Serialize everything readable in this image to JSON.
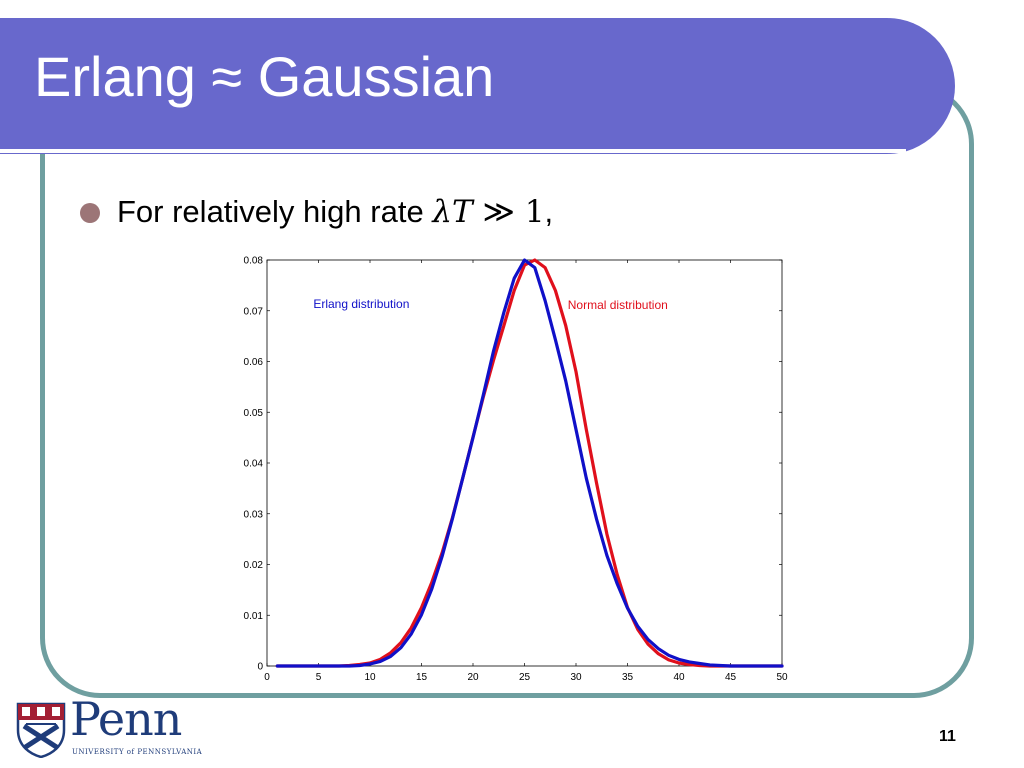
{
  "slide": {
    "title": "Erlang ≈ Gaussian",
    "bullet_prefix": "For relatively high rate ",
    "bullet_math_lambda_t": "λT",
    "bullet_math_gg": " ≫ ",
    "bullet_math_one": "1",
    "bullet_suffix": ",",
    "page_number": "11"
  },
  "logo": {
    "name": "Penn",
    "subtitle": "UNIVERSITY of PENNSYLVANIA"
  },
  "colors": {
    "title_bar": "#6868cc",
    "frame": "#6f9fa0",
    "bullet": "#9c7577",
    "erlang": "#1010c8",
    "normal": "#e0101c"
  },
  "chart_data": {
    "type": "line",
    "xlim": [
      0,
      50
    ],
    "ylim": [
      0,
      0.08
    ],
    "xticks": [
      0,
      5,
      10,
      15,
      20,
      25,
      30,
      35,
      40,
      45,
      50
    ],
    "yticks": [
      0,
      0.01,
      0.02,
      0.03,
      0.04,
      0.05,
      0.06,
      0.07,
      0.08
    ],
    "xtick_labels": [
      "0",
      "5",
      "10",
      "15",
      "20",
      "25",
      "30",
      "35",
      "40",
      "45",
      "50"
    ],
    "ytick_labels": [
      "0",
      "0.01",
      "0.02",
      "0.03",
      "0.04",
      "0.05",
      "0.06",
      "0.07",
      "0.08"
    ],
    "x": [
      1,
      2,
      3,
      4,
      5,
      6,
      7,
      8,
      9,
      10,
      11,
      12,
      13,
      14,
      15,
      16,
      17,
      18,
      19,
      20,
      21,
      22,
      23,
      24,
      25,
      26,
      27,
      28,
      29,
      30,
      31,
      32,
      33,
      34,
      35,
      36,
      37,
      38,
      39,
      40,
      41,
      42,
      43,
      44,
      45,
      46,
      47,
      48,
      49,
      50
    ],
    "series": [
      {
        "name": "Erlang distribution",
        "color": "#1010c8",
        "values": [
          0,
          0,
          0,
          0,
          0,
          0,
          0,
          0,
          0.0001,
          0.0004,
          0.0009,
          0.0019,
          0.0036,
          0.0063,
          0.0101,
          0.0152,
          0.0216,
          0.029,
          0.037,
          0.045,
          0.0534,
          0.0621,
          0.0697,
          0.0764,
          0.08,
          0.0785,
          0.072,
          0.0643,
          0.0562,
          0.0466,
          0.037,
          0.0289,
          0.0218,
          0.0162,
          0.0114,
          0.0078,
          0.0052,
          0.0034,
          0.0021,
          0.0013,
          0.0008,
          0.0005,
          0.0002,
          0.0001,
          0,
          0,
          0,
          0,
          0,
          0
        ]
      },
      {
        "name": "Normal distribution",
        "color": "#e0101c",
        "values": [
          0,
          0,
          0,
          0,
          0,
          0,
          0,
          0.0001,
          0.0003,
          0.0006,
          0.0013,
          0.0026,
          0.0046,
          0.0075,
          0.0115,
          0.0165,
          0.0223,
          0.0292,
          0.037,
          0.0451,
          0.053,
          0.0603,
          0.0671,
          0.074,
          0.079,
          0.08,
          0.0785,
          0.074,
          0.0671,
          0.058,
          0.0466,
          0.036,
          0.026,
          0.018,
          0.0115,
          0.0072,
          0.0043,
          0.0024,
          0.0012,
          0.0006,
          0.0003,
          0.0001,
          0,
          0,
          0,
          0,
          0,
          0,
          0,
          0
        ]
      }
    ],
    "annotations": [
      {
        "text": "Erlang distribution",
        "x": 4.5,
        "y": 0.0705,
        "color": "#1010c8"
      },
      {
        "text": "Normal distribution",
        "x": 29.2,
        "y": 0.0703,
        "color": "#e0101c"
      }
    ],
    "grid": false,
    "legend": "none"
  }
}
